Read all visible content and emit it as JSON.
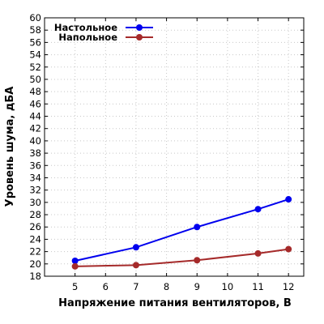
{
  "chart_data": {
    "type": "line",
    "xlabel": "Напряжение питания вентиляторов, В",
    "ylabel": "Уровень шума, дБА",
    "xlim": [
      4,
      12.5
    ],
    "ylim": [
      18,
      60
    ],
    "x_ticks": [
      5,
      6,
      7,
      8,
      9,
      10,
      11,
      12
    ],
    "y_ticks": [
      18,
      20,
      22,
      24,
      26,
      28,
      30,
      32,
      34,
      36,
      38,
      40,
      42,
      44,
      46,
      48,
      50,
      52,
      54,
      56,
      58,
      60
    ],
    "grid": true,
    "legend_position": "top-left",
    "series": [
      {
        "name": "Настольное",
        "color": "#0000ee",
        "x": [
          5,
          7,
          9,
          11,
          12
        ],
        "y": [
          20.5,
          22.7,
          26.0,
          28.9,
          30.5
        ]
      },
      {
        "name": "Напольное",
        "color": "#a52a2a",
        "x": [
          5,
          7,
          9,
          11,
          12
        ],
        "y": [
          19.6,
          19.8,
          20.6,
          21.7,
          22.4
        ]
      }
    ]
  }
}
